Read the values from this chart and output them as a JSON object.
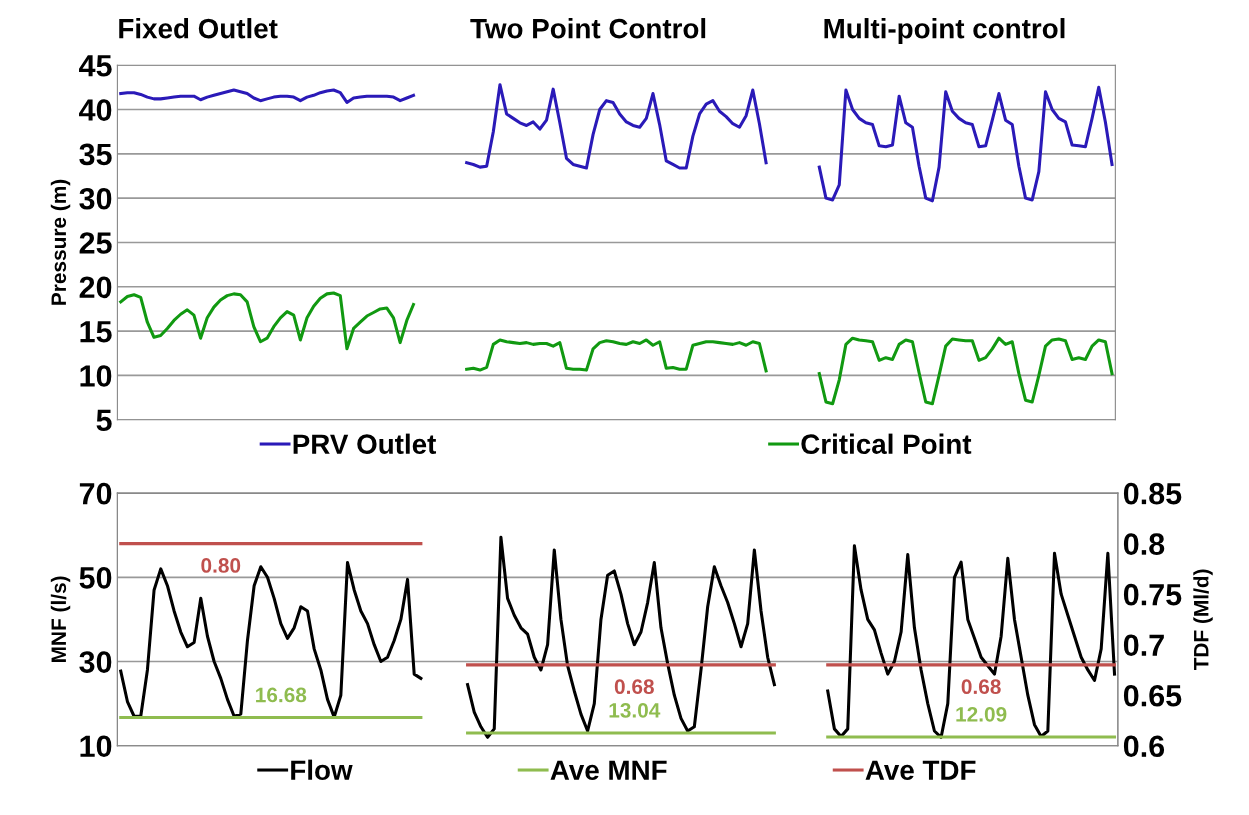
{
  "chart_data": [
    {
      "type": "line",
      "ylabel": "Pressure (m)",
      "annotations": [
        "Fixed Outlet",
        "Two Point Control",
        "Multi-point control"
      ],
      "categories": [
        null,
        null,
        null,
        null,
        null,
        null,
        null,
        null,
        null,
        null,
        null,
        null,
        null,
        null,
        null,
        null,
        null,
        null,
        null,
        null,
        null,
        null,
        null,
        null,
        null,
        null,
        null,
        null,
        null,
        null,
        null,
        null,
        null,
        null,
        null,
        null,
        null,
        null,
        null,
        null,
        null,
        null,
        null,
        null,
        null,
        null,
        null,
        null,
        null,
        null,
        null,
        null,
        null,
        null,
        null,
        null,
        null,
        null,
        null,
        null,
        null,
        null,
        null,
        null,
        null,
        null,
        null,
        null,
        null,
        null,
        null,
        null,
        null,
        null,
        null,
        null,
        null,
        null,
        null,
        null,
        null,
        null,
        null,
        null,
        null,
        null,
        null,
        null,
        null,
        null,
        null,
        null,
        null,
        null,
        null,
        null,
        null,
        null,
        null,
        null,
        null,
        null,
        null,
        null,
        null,
        null,
        null,
        null,
        null,
        null,
        null,
        null,
        null,
        null,
        null,
        null,
        null,
        null,
        null,
        null,
        null,
        null,
        null,
        null,
        null,
        null,
        null,
        null,
        null,
        null,
        null,
        null,
        null,
        null,
        null,
        null,
        null,
        null,
        null,
        null,
        null,
        null,
        null,
        null,
        null,
        null,
        null,
        null,
        null,
        null
      ],
      "ylim": [
        5,
        45
      ],
      "yticks": [
        5,
        10,
        15,
        20,
        25,
        30,
        35,
        40,
        45
      ],
      "grid": "y",
      "legend": "bottom",
      "series": [
        {
          "name": "PRV Outlet",
          "color": "#2a1ab8",
          "values": [
            41.8,
            41.9,
            41.9,
            41.7,
            41.4,
            41.2,
            41.2,
            41.3,
            41.4,
            41.5,
            41.5,
            41.5,
            41.1,
            41.4,
            41.6,
            41.8,
            42.0,
            42.2,
            42.0,
            41.8,
            41.3,
            41.0,
            41.2,
            41.4,
            41.5,
            41.5,
            41.4,
            41.0,
            41.4,
            41.6,
            41.9,
            42.1,
            42.2,
            41.9,
            40.8,
            41.3,
            41.4,
            41.5,
            41.5,
            41.5,
            41.5,
            41.4,
            41.0,
            41.3,
            41.6,
            null,
            null,
            null,
            null,
            null,
            null,
            null,
            34.0,
            33.8,
            33.5,
            33.6,
            37.5,
            42.8,
            39.5,
            39.0,
            38.5,
            38.2,
            38.6,
            37.8,
            38.8,
            42.3,
            38.5,
            34.5,
            33.8,
            33.6,
            33.4,
            37.2,
            40.0,
            41.0,
            40.8,
            39.5,
            38.6,
            38.2,
            38.0,
            39.0,
            41.8,
            38.3,
            34.2,
            33.8,
            33.4,
            33.4,
            37.0,
            39.5,
            40.6,
            41.0,
            39.8,
            39.2,
            38.4,
            38.0,
            39.3,
            42.2,
            38.4,
            34.0,
            null,
            null,
            null,
            null,
            null,
            null,
            null,
            33.5,
            30.0,
            29.8,
            31.5,
            42.2,
            40.0,
            39.0,
            38.5,
            38.3,
            35.9,
            35.8,
            36.0,
            41.5,
            38.5,
            38.0,
            33.6,
            30.0,
            29.7,
            33.5,
            42.0,
            39.8,
            39.0,
            38.5,
            38.3,
            35.8,
            35.9,
            38.8,
            41.8,
            38.8,
            38.3,
            33.6,
            30.0,
            29.8,
            33.0,
            42.0,
            40.0,
            39.0,
            38.6,
            36.0,
            35.9,
            35.8,
            39.0,
            42.5,
            38.6,
            33.8
          ]
        },
        {
          "name": "Critical Point",
          "color": "#119911",
          "values": [
            18.3,
            18.9,
            19.1,
            18.8,
            16.0,
            14.3,
            14.5,
            15.3,
            16.2,
            16.9,
            17.4,
            16.8,
            14.2,
            16.5,
            17.7,
            18.5,
            19.0,
            19.2,
            19.1,
            18.3,
            15.5,
            13.8,
            14.2,
            15.5,
            16.5,
            17.2,
            16.8,
            14.0,
            16.5,
            17.8,
            18.7,
            19.2,
            19.3,
            19.0,
            13.0,
            15.3,
            16.0,
            16.7,
            17.1,
            17.5,
            17.6,
            16.5,
            13.7,
            16.2,
            18.0,
            null,
            null,
            null,
            null,
            null,
            null,
            null,
            10.7,
            10.8,
            10.6,
            10.9,
            13.5,
            14.0,
            13.8,
            13.7,
            13.6,
            13.7,
            13.5,
            13.6,
            13.6,
            13.3,
            13.7,
            10.8,
            10.7,
            10.7,
            10.6,
            13.0,
            13.7,
            13.9,
            13.8,
            13.6,
            13.5,
            13.8,
            13.6,
            14.0,
            13.4,
            13.8,
            10.8,
            10.9,
            10.7,
            10.7,
            13.4,
            13.6,
            13.8,
            13.8,
            13.7,
            13.6,
            13.5,
            13.7,
            13.4,
            13.8,
            13.6,
            10.5,
            null,
            null,
            null,
            null,
            null,
            null,
            null,
            10.2,
            7.0,
            6.8,
            9.5,
            13.5,
            14.2,
            14.0,
            13.9,
            13.8,
            11.7,
            12.0,
            11.8,
            13.5,
            14.0,
            13.8,
            10.3,
            7.0,
            6.8,
            10.0,
            13.3,
            14.1,
            14.0,
            13.9,
            13.9,
            11.7,
            12.0,
            13.0,
            14.2,
            13.5,
            13.8,
            10.2,
            7.2,
            7.0,
            10.0,
            13.3,
            14.0,
            14.1,
            13.9,
            11.8,
            12.0,
            11.8,
            13.3,
            14.0,
            13.8,
            10.2
          ]
        }
      ]
    },
    {
      "type": "line",
      "ylabel": "MNF (l/s)",
      "y2label": "TDF (Ml/d)",
      "categories": [
        null,
        null,
        null,
        null,
        null,
        null,
        null,
        null,
        null,
        null,
        null,
        null,
        null,
        null,
        null,
        null,
        null,
        null,
        null,
        null,
        null,
        null,
        null,
        null,
        null,
        null,
        null,
        null,
        null,
        null,
        null,
        null,
        null,
        null,
        null,
        null,
        null,
        null,
        null,
        null,
        null,
        null,
        null,
        null,
        null,
        null,
        null,
        null,
        null,
        null,
        null,
        null,
        null,
        null,
        null,
        null,
        null,
        null,
        null,
        null,
        null,
        null,
        null,
        null,
        null,
        null,
        null,
        null,
        null,
        null,
        null,
        null,
        null,
        null,
        null,
        null,
        null,
        null,
        null,
        null,
        null,
        null,
        null,
        null,
        null,
        null,
        null,
        null,
        null,
        null,
        null,
        null,
        null,
        null,
        null,
        null,
        null,
        null,
        null,
        null,
        null,
        null,
        null,
        null,
        null,
        null,
        null,
        null,
        null,
        null,
        null,
        null,
        null,
        null,
        null,
        null,
        null,
        null,
        null,
        null,
        null,
        null,
        null,
        null,
        null,
        null,
        null,
        null,
        null,
        null,
        null,
        null,
        null,
        null,
        null,
        null,
        null,
        null,
        null,
        null,
        null,
        null,
        null,
        null,
        null,
        null,
        null,
        null,
        null,
        null
      ],
      "ylim": [
        10,
        70
      ],
      "yticks": [
        10,
        30,
        50,
        70
      ],
      "y2lim": [
        0.6,
        0.85
      ],
      "y2ticks": [
        0.6,
        0.65,
        0.7,
        0.75,
        0.8,
        0.85
      ],
      "grid": "y",
      "legend": "bottom",
      "series": [
        {
          "name": "Flow",
          "color": "#000000",
          "values": [
            27.7,
            20.5,
            17.0,
            17.0,
            28.0,
            47.0,
            52.0,
            48.0,
            42.0,
            37.0,
            33.5,
            34.5,
            45.0,
            36.0,
            30.0,
            26.0,
            21.0,
            17.0,
            17.5,
            35.0,
            48.0,
            52.5,
            50.0,
            45.0,
            39.0,
            35.5,
            38.0,
            43.0,
            42.0,
            33.0,
            28.0,
            21.0,
            16.8,
            22.0,
            53.5,
            47.0,
            42.0,
            39.0,
            34.0,
            30.0,
            31.0,
            35.0,
            40.0,
            49.5,
            27.0,
            26.0,
            null,
            null,
            null,
            null,
            null,
            null,
            24.5,
            18.0,
            14.5,
            12.0,
            14.0,
            59.5,
            45.0,
            41.0,
            38.0,
            36.5,
            31.0,
            28.0,
            34.0,
            56.5,
            40.0,
            29.0,
            23.0,
            17.5,
            13.5,
            20.0,
            40.0,
            50.5,
            51.5,
            46.0,
            39.0,
            34.0,
            37.0,
            44.0,
            53.5,
            38.0,
            29.5,
            22.0,
            16.5,
            13.5,
            14.5,
            28.0,
            43.0,
            52.5,
            48.0,
            44.0,
            39.0,
            33.5,
            39.0,
            56.5,
            42.0,
            31.0,
            24.5,
            null,
            null,
            null,
            null,
            null,
            null,
            null,
            23.0,
            14.0,
            12.2,
            14.0,
            57.5,
            47.0,
            40.0,
            37.5,
            32.0,
            27.0,
            30.0,
            37.0,
            55.4,
            38.0,
            28.0,
            20.0,
            13.5,
            12.0,
            20.0,
            50.0,
            53.6,
            40.0,
            35.5,
            31.0,
            29.0,
            27.0,
            36.0,
            54.5,
            40.0,
            31.0,
            22.0,
            15.0,
            12.2,
            13.5,
            55.7,
            46.0,
            41.0,
            36.0,
            31.0,
            28.0,
            25.5,
            33.0,
            55.7,
            27.0
          ]
        },
        {
          "name": "Ave MNF",
          "color": "#8fbc4f",
          "values": [
            16.68,
            16.68,
            16.68,
            16.68,
            16.68,
            16.68,
            16.68,
            16.68,
            16.68,
            16.68,
            16.68,
            16.68,
            16.68,
            16.68,
            16.68,
            16.68,
            16.68,
            16.68,
            16.68,
            16.68,
            16.68,
            16.68,
            16.68,
            16.68,
            16.68,
            16.68,
            16.68,
            16.68,
            16.68,
            16.68,
            16.68,
            16.68,
            16.68,
            16.68,
            16.68,
            16.68,
            16.68,
            16.68,
            16.68,
            16.68,
            16.68,
            16.68,
            16.68,
            16.68,
            16.68,
            16.68,
            null,
            null,
            null,
            null,
            null,
            null,
            13.04,
            13.04,
            13.04,
            13.04,
            13.04,
            13.04,
            13.04,
            13.04,
            13.04,
            13.04,
            13.04,
            13.04,
            13.04,
            13.04,
            13.04,
            13.04,
            13.04,
            13.04,
            13.04,
            13.04,
            13.04,
            13.04,
            13.04,
            13.04,
            13.04,
            13.04,
            13.04,
            13.04,
            13.04,
            13.04,
            13.04,
            13.04,
            13.04,
            13.04,
            13.04,
            13.04,
            13.04,
            13.04,
            13.04,
            13.04,
            13.04,
            13.04,
            13.04,
            13.04,
            13.04,
            13.04,
            13.04,
            null,
            null,
            null,
            null,
            null,
            null,
            null,
            12.09,
            12.09,
            12.09,
            12.09,
            12.09,
            12.09,
            12.09,
            12.09,
            12.09,
            12.09,
            12.09,
            12.09,
            12.09,
            12.09,
            12.09,
            12.09,
            12.09,
            12.09,
            12.09,
            12.09,
            12.09,
            12.09,
            12.09,
            12.09,
            12.09,
            12.09,
            12.09,
            12.09,
            12.09,
            12.09,
            12.09,
            12.09,
            12.09,
            12.09,
            12.09,
            12.09,
            12.09,
            12.09,
            12.09,
            12.09,
            12.09,
            12.09,
            12.09,
            12.09
          ],
          "value_labels": [
            null,
            null,
            null,
            null,
            null,
            null,
            null,
            null,
            null,
            null,
            null,
            null,
            null,
            null,
            null,
            null,
            null,
            null,
            null,
            null,
            null,
            null,
            null,
            null,
            "16.68",
            null,
            null,
            null,
            null,
            null,
            null,
            null,
            null,
            null,
            null,
            null,
            null,
            null,
            null,
            null,
            null,
            null,
            null,
            null,
            null,
            null,
            null,
            null,
            null,
            null,
            null,
            null,
            null,
            null,
            null,
            null,
            null,
            null,
            null,
            null,
            null,
            null,
            null,
            null,
            null,
            null,
            null,
            null,
            null,
            null,
            null,
            null,
            null,
            null,
            null,
            null,
            null,
            "13.04",
            null,
            null,
            null,
            null,
            null,
            null,
            null,
            null,
            null,
            null,
            null,
            null,
            null,
            null,
            null,
            null,
            null,
            null,
            null,
            null,
            null,
            null,
            null,
            null,
            null,
            null,
            null,
            null,
            null,
            null,
            null,
            null,
            null,
            null,
            null,
            null,
            null,
            null,
            null,
            null,
            null,
            null,
            null,
            null,
            null,
            null,
            null,
            null,
            null,
            null,
            null,
            "12.09",
            null,
            null,
            null,
            null,
            null,
            null,
            null,
            null,
            null,
            null,
            null,
            null,
            null,
            null,
            null,
            null,
            null,
            null,
            null,
            null
          ]
        },
        {
          "name": "Ave TDF",
          "color": "#c0504d",
          "axis": "y2",
          "values": [
            0.8,
            0.8,
            0.8,
            0.8,
            0.8,
            0.8,
            0.8,
            0.8,
            0.8,
            0.8,
            0.8,
            0.8,
            0.8,
            0.8,
            0.8,
            0.8,
            0.8,
            0.8,
            0.8,
            0.8,
            0.8,
            0.8,
            0.8,
            0.8,
            0.8,
            0.8,
            0.8,
            0.8,
            0.8,
            0.8,
            0.8,
            0.8,
            0.8,
            0.8,
            0.8,
            0.8,
            0.8,
            0.8,
            0.8,
            0.8,
            0.8,
            0.8,
            0.8,
            0.8,
            0.8,
            0.8,
            null,
            null,
            null,
            null,
            null,
            null,
            0.68,
            0.68,
            0.68,
            0.68,
            0.68,
            0.68,
            0.68,
            0.68,
            0.68,
            0.68,
            0.68,
            0.68,
            0.68,
            0.68,
            0.68,
            0.68,
            0.68,
            0.68,
            0.68,
            0.68,
            0.68,
            0.68,
            0.68,
            0.68,
            0.68,
            0.68,
            0.68,
            0.68,
            0.68,
            0.68,
            0.68,
            0.68,
            0.68,
            0.68,
            0.68,
            0.68,
            0.68,
            0.68,
            0.68,
            0.68,
            0.68,
            0.68,
            0.68,
            0.68,
            0.68,
            0.68,
            0.68,
            null,
            null,
            null,
            null,
            null,
            null,
            null,
            0.68,
            0.68,
            0.68,
            0.68,
            0.68,
            0.68,
            0.68,
            0.68,
            0.68,
            0.68,
            0.68,
            0.68,
            0.68,
            0.68,
            0.68,
            0.68,
            0.68,
            0.68,
            0.68,
            0.68,
            0.68,
            0.68,
            0.68,
            0.68,
            0.68,
            0.68,
            0.68,
            0.68,
            0.68,
            0.68,
            0.68,
            0.68,
            0.68,
            0.68,
            0.68,
            0.68,
            0.68,
            0.68,
            0.68,
            0.68,
            0.68,
            0.68,
            0.68,
            0.68
          ],
          "value_labels": [
            null,
            null,
            null,
            null,
            null,
            null,
            null,
            null,
            null,
            null,
            null,
            null,
            null,
            null,
            null,
            "0.80",
            null,
            null,
            null,
            null,
            null,
            null,
            null,
            null,
            null,
            null,
            null,
            null,
            null,
            null,
            null,
            null,
            null,
            null,
            null,
            null,
            null,
            null,
            null,
            null,
            null,
            null,
            null,
            null,
            null,
            null,
            null,
            null,
            null,
            null,
            null,
            null,
            null,
            null,
            null,
            null,
            null,
            null,
            null,
            null,
            null,
            null,
            null,
            null,
            null,
            null,
            null,
            null,
            null,
            null,
            null,
            null,
            null,
            null,
            null,
            null,
            null,
            "0.68",
            null,
            null,
            null,
            null,
            null,
            null,
            null,
            null,
            null,
            null,
            null,
            null,
            null,
            null,
            null,
            null,
            null,
            null,
            null,
            null,
            null,
            null,
            null,
            null,
            null,
            null,
            null,
            null,
            null,
            null,
            null,
            null,
            null,
            null,
            null,
            null,
            null,
            null,
            null,
            null,
            null,
            null,
            null,
            null,
            null,
            null,
            null,
            null,
            null,
            null,
            null,
            "0.68",
            null,
            null,
            null,
            null,
            null,
            null,
            null,
            null,
            null,
            null,
            null,
            null,
            null,
            null,
            null,
            null,
            null,
            null,
            null,
            null
          ]
        }
      ]
    }
  ]
}
